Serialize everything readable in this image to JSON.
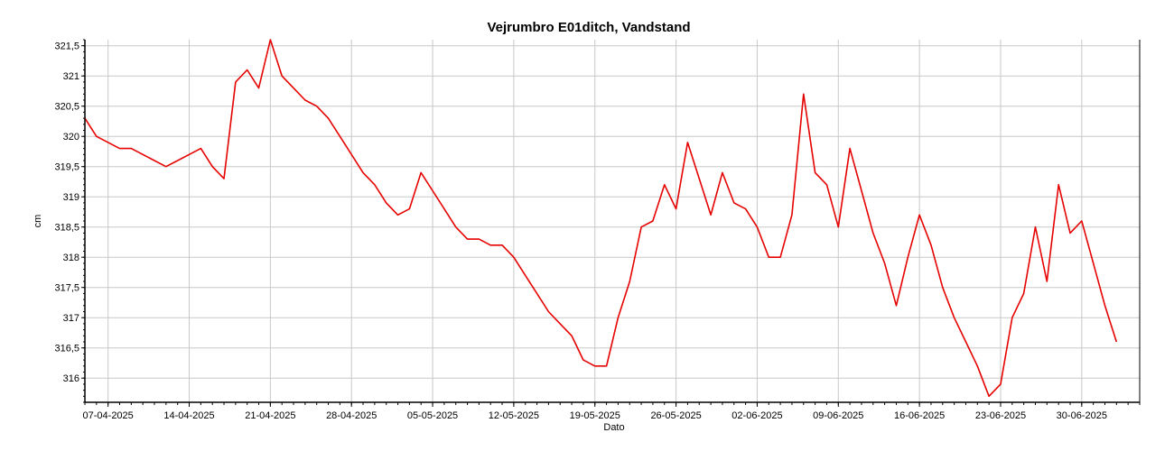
{
  "chart_data": {
    "type": "line",
    "title": "Vejrumbro E01ditch, Vandstand",
    "xlabel": "Dato",
    "ylabel": "cm",
    "ylim": [
      315.6,
      321.6
    ],
    "xlim": [
      "2025-04-05",
      "2025-07-05"
    ],
    "grid": true,
    "legend": "none",
    "color": "#e60000",
    "x_ticks": [
      "07-04-2025",
      "14-04-2025",
      "21-04-2025",
      "28-04-2025",
      "05-05-2025",
      "12-05-2025",
      "19-05-2025",
      "26-05-2025",
      "02-06-2025",
      "09-06-2025",
      "16-06-2025",
      "23-06-2025",
      "30-06-2025"
    ],
    "x_tick_dates": [
      "2025-04-07",
      "2025-04-14",
      "2025-04-21",
      "2025-04-28",
      "2025-05-05",
      "2025-05-12",
      "2025-05-19",
      "2025-05-26",
      "2025-06-02",
      "2025-06-09",
      "2025-06-16",
      "2025-06-23",
      "2025-06-30"
    ],
    "y_ticks": [
      316,
      316.5,
      317,
      317.5,
      318,
      318.5,
      319,
      319.5,
      320,
      320.5,
      321,
      321.5
    ],
    "y_tick_labels": [
      "316",
      "316,5",
      "317",
      "317,5",
      "318",
      "318,5",
      "319",
      "319,5",
      "320",
      "320,5",
      "321",
      "321,5"
    ],
    "series": [
      {
        "x": [
          "2025-04-05",
          "2025-04-06",
          "2025-04-07",
          "2025-04-08",
          "2025-04-09",
          "2025-04-10",
          "2025-04-11",
          "2025-04-12",
          "2025-04-13",
          "2025-04-14",
          "2025-04-15",
          "2025-04-16",
          "2025-04-17",
          "2025-04-18",
          "2025-04-19",
          "2025-04-20",
          "2025-04-21",
          "2025-04-22",
          "2025-04-23",
          "2025-04-24",
          "2025-04-25",
          "2025-04-26",
          "2025-04-27",
          "2025-04-28",
          "2025-04-29",
          "2025-04-30",
          "2025-05-01",
          "2025-05-02",
          "2025-05-03",
          "2025-05-04",
          "2025-05-05",
          "2025-05-06",
          "2025-05-07",
          "2025-05-08",
          "2025-05-09",
          "2025-05-10",
          "2025-05-11",
          "2025-05-12",
          "2025-05-13",
          "2025-05-14",
          "2025-05-15",
          "2025-05-16",
          "2025-05-17",
          "2025-05-18",
          "2025-05-19",
          "2025-05-20",
          "2025-05-21",
          "2025-05-22",
          "2025-05-23",
          "2025-05-24",
          "2025-05-25",
          "2025-05-26",
          "2025-05-27",
          "2025-05-28",
          "2025-05-29",
          "2025-05-30",
          "2025-05-31",
          "2025-06-01",
          "2025-06-02",
          "2025-06-03",
          "2025-06-04",
          "2025-06-05",
          "2025-06-06",
          "2025-06-07",
          "2025-06-08",
          "2025-06-09",
          "2025-06-10",
          "2025-06-11",
          "2025-06-12",
          "2025-06-13",
          "2025-06-14",
          "2025-06-15",
          "2025-06-16",
          "2025-06-17",
          "2025-06-18",
          "2025-06-19",
          "2025-06-20",
          "2025-06-21",
          "2025-06-22",
          "2025-06-23",
          "2025-06-24",
          "2025-06-25",
          "2025-06-26",
          "2025-06-27",
          "2025-06-28",
          "2025-06-29",
          "2025-06-30",
          "2025-07-01",
          "2025-07-02",
          "2025-07-03"
        ],
        "values": [
          320.3,
          320.0,
          319.9,
          319.8,
          319.8,
          319.7,
          319.6,
          319.5,
          319.6,
          319.7,
          319.8,
          319.5,
          319.3,
          320.9,
          321.1,
          320.8,
          321.6,
          321.0,
          320.8,
          320.6,
          320.5,
          320.3,
          320.0,
          319.7,
          319.4,
          319.2,
          318.9,
          318.7,
          318.8,
          319.4,
          319.1,
          318.8,
          318.5,
          318.3,
          318.3,
          318.2,
          318.2,
          318.0,
          317.7,
          317.4,
          317.1,
          316.9,
          316.7,
          316.3,
          316.2,
          316.2,
          317.0,
          317.6,
          318.5,
          318.6,
          319.2,
          318.8,
          319.9,
          319.3,
          318.7,
          319.4,
          318.9,
          318.8,
          318.5,
          318.0,
          318.0,
          318.7,
          320.7,
          319.4,
          319.2,
          318.5,
          319.8,
          319.1,
          318.4,
          317.9,
          317.2,
          318.0,
          318.7,
          318.2,
          317.5,
          317.0,
          316.6,
          316.2,
          315.7,
          315.9,
          317.0,
          317.4,
          318.5,
          317.6,
          319.2,
          318.4,
          318.6,
          317.9,
          317.2,
          316.6
        ]
      }
    ]
  }
}
